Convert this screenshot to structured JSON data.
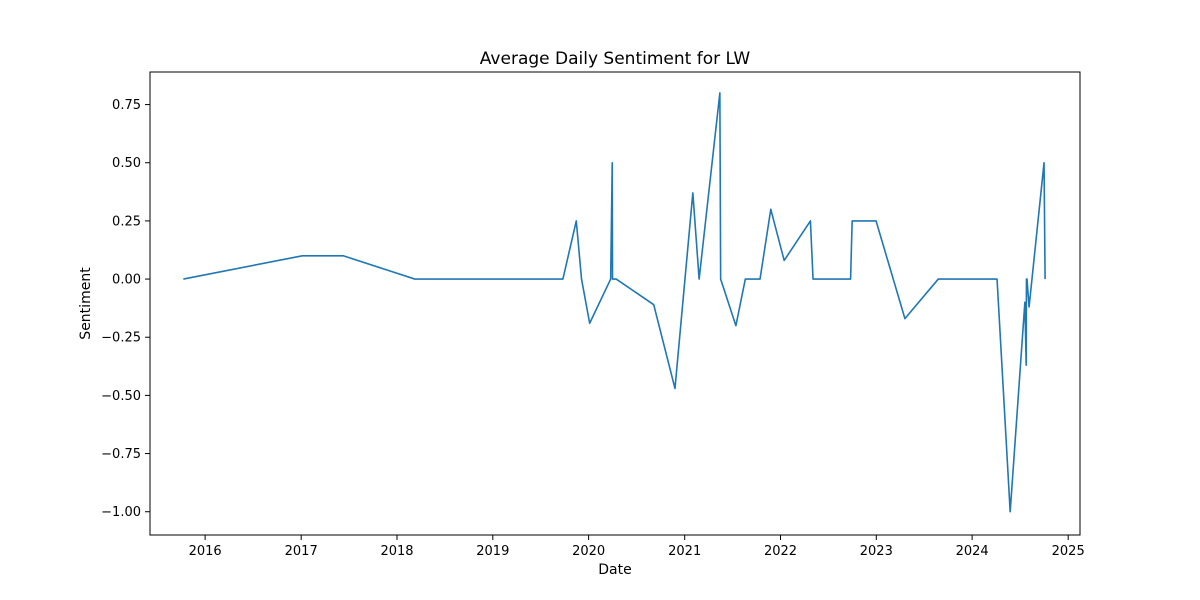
{
  "chart_data": {
    "type": "line",
    "title": "Average Daily Sentiment for LW",
    "xlabel": "Date",
    "ylabel": "Sentiment",
    "xlim": [
      "2015-06-05",
      "2025-02-15"
    ],
    "ylim": [
      -1.1,
      0.89
    ],
    "grid": false,
    "legend": "none",
    "x_ticks": [
      "2016",
      "2017",
      "2018",
      "2019",
      "2020",
      "2021",
      "2022",
      "2023",
      "2024",
      "2025"
    ],
    "y_ticks": [
      "0.75",
      "0.50",
      "0.25",
      "0.00",
      "−0.25",
      "−0.50",
      "−0.75",
      "−1.00"
    ],
    "series": [
      {
        "color": "#1f77b4",
        "x": [
          "2015-10-10",
          "2017-01-05",
          "2017-06-10",
          "2018-03-10",
          "2019-09-25",
          "2019-11-15",
          "2019-12-05",
          "2020-01-05",
          "2020-03-25",
          "2020-03-31",
          "2020-04-01",
          "2020-04-15",
          "2020-09-05",
          "2020-11-25",
          "2021-02-01",
          "2021-02-25",
          "2021-05-15",
          "2021-05-18",
          "2021-07-15",
          "2021-08-20",
          "2021-10-15",
          "2021-11-25",
          "2022-01-15",
          "2022-04-25",
          "2022-05-05",
          "2022-09-25",
          "2022-10-01",
          "2022-12-31",
          "2023-04-20",
          "2023-08-25",
          "2024-04-05",
          "2024-05-25",
          "2024-07-20",
          "2024-07-25",
          "2024-07-26",
          "2024-07-28",
          "2024-08-05",
          "2024-10-01",
          "2024-10-05"
        ],
        "y": [
          0.0,
          0.1,
          0.1,
          0.0,
          0.0,
          0.25,
          0.0,
          -0.19,
          0.0,
          0.5,
          0.0,
          0.0,
          -0.11,
          -0.47,
          0.37,
          0.0,
          0.8,
          0.0,
          -0.2,
          0.0,
          0.0,
          0.3,
          0.08,
          0.25,
          0.0,
          0.0,
          0.25,
          0.25,
          -0.17,
          0.0,
          0.0,
          -1.0,
          -0.1,
          -0.37,
          0.0,
          0.0,
          -0.12,
          0.5,
          0.0
        ]
      }
    ]
  }
}
